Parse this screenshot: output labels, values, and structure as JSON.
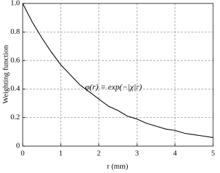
{
  "chart_data": {
    "type": "line",
    "annotation": "φ(r) = exp(−|χ|r)",
    "x_label": "r (mm)",
    "y_label": "Weighting function",
    "x": [
      0,
      0.25,
      0.5,
      0.75,
      1,
      1.25,
      1.5,
      1.75,
      2,
      2.25,
      2.5,
      2.75,
      3,
      3.25,
      3.5,
      3.75,
      4,
      4.25,
      4.5,
      4.75,
      5
    ],
    "series": [
      {
        "color": "#000000",
        "values": [
          1,
          0.87,
          0.76,
          0.66,
          0.57,
          0.5,
          0.43,
          0.38,
          0.33,
          0.28,
          0.25,
          0.21,
          0.19,
          0.16,
          0.14,
          0.12,
          0.11,
          0.09,
          0.08,
          0.07,
          0.06
        ]
      }
    ],
    "xlim": [
      0,
      5
    ],
    "xticks": [
      0,
      1,
      2,
      3,
      4,
      5
    ],
    "ylim": [
      0,
      1
    ],
    "yticks": [
      0,
      0.2,
      0.4,
      0.6,
      0.8,
      {
        "value": 1,
        "label": "1.0"
      }
    ],
    "grid": true
  }
}
